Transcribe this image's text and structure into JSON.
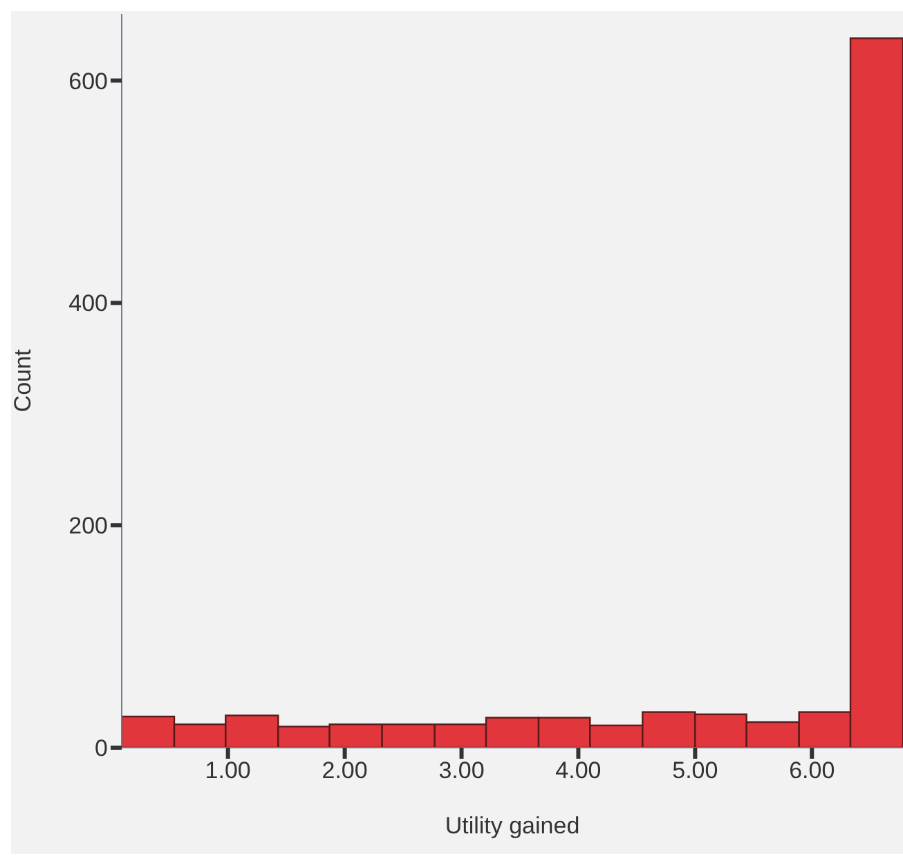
{
  "chart_data": {
    "type": "histogram",
    "xlabel": "Utility gained",
    "ylabel": "Count",
    "bins": [
      0.09,
      0.54,
      0.98,
      1.43,
      1.87,
      2.32,
      2.77,
      3.21,
      3.66,
      4.1,
      4.55,
      5.0,
      5.44,
      5.89,
      6.33,
      6.78
    ],
    "values": [
      28,
      21,
      29,
      19,
      21,
      21,
      21,
      27,
      27,
      20,
      32,
      30,
      23,
      32,
      638
    ],
    "color": "#e0363c",
    "xlim": [
      0.09,
      6.78
    ],
    "xticks": [
      {
        "value": 1,
        "label": "1.00"
      },
      {
        "value": 2,
        "label": "2.00"
      },
      {
        "value": 3,
        "label": "3.00"
      },
      {
        "value": 4,
        "label": "4.00"
      },
      {
        "value": 5,
        "label": "5.00"
      },
      {
        "value": 6,
        "label": "6.00"
      }
    ],
    "ylim": [
      0,
      660
    ],
    "yticks": [
      0,
      200,
      400,
      600
    ],
    "grid": false
  }
}
